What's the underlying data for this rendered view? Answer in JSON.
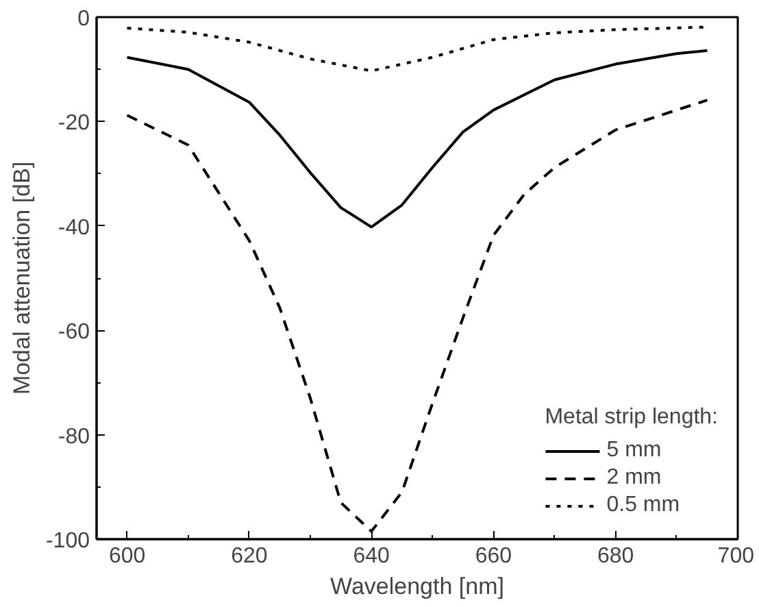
{
  "chart_data": {
    "type": "line",
    "xlabel": "Wavelength [nm]",
    "ylabel": "Modal attenuation [dB]",
    "legend_title": "Metal strip length:",
    "legend": "bottom right",
    "grid": false,
    "xlim": [
      595,
      700
    ],
    "ylim": [
      -100,
      0
    ],
    "xticks": [
      600,
      620,
      640,
      660,
      680,
      700
    ],
    "yticks": [
      -100,
      -80,
      -60,
      -40,
      -20,
      0
    ],
    "series": [
      {
        "name": "5 mm",
        "color": "#000000",
        "line_style": "solid",
        "x": [
          600,
          610,
          620,
          625,
          630,
          635,
          640,
          645,
          650,
          655,
          660,
          670,
          680,
          690,
          695
        ],
        "values": [
          -7.7,
          -10,
          -16.3,
          -22.6,
          -29.8,
          -36.5,
          -40.2,
          -36,
          -28.8,
          -22,
          -17.8,
          -12,
          -9,
          -7,
          -6.4
        ]
      },
      {
        "name": "2 mm",
        "color": "#000000",
        "line_style": "dashed",
        "x": [
          600,
          610,
          620,
          625,
          630,
          635,
          640,
          645,
          650,
          655,
          660,
          665,
          670,
          680,
          690,
          695
        ],
        "values": [
          -18.8,
          -24.5,
          -42.8,
          -55.7,
          -73,
          -93,
          -98.5,
          -91,
          -74,
          -57.6,
          -41.8,
          -34,
          -28.8,
          -21.6,
          -17.8,
          -15.9
        ]
      },
      {
        "name": "0.5 mm",
        "color": "#000000",
        "line_style": "dotted",
        "x": [
          600,
          610,
          620,
          630,
          640,
          650,
          660,
          670,
          680,
          695
        ],
        "values": [
          -2.1,
          -2.9,
          -4.8,
          -8,
          -10.3,
          -7.7,
          -4.3,
          -3,
          -2.4,
          -1.9
        ]
      }
    ]
  }
}
